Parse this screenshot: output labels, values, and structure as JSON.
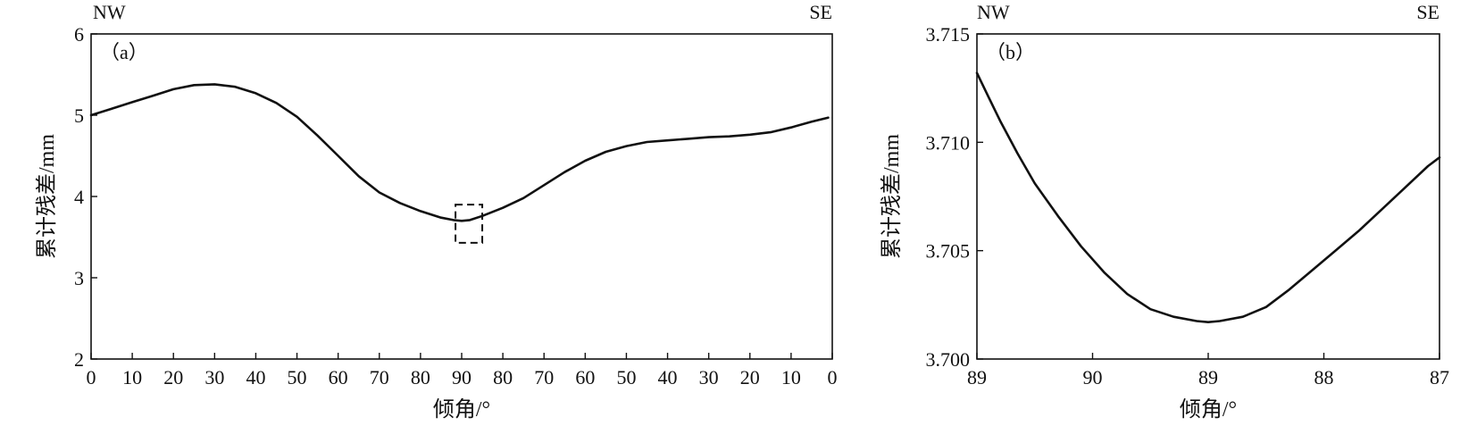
{
  "chart_data": [
    {
      "type": "line",
      "panel_label": "（a）",
      "direction_left": "NW",
      "direction_right": "SE",
      "xlabel": "倾角/°",
      "ylabel": "累计残差/mm",
      "x_tick_labels": [
        "0",
        "10",
        "20",
        "30",
        "40",
        "50",
        "60",
        "70",
        "80",
        "90",
        "80",
        "70",
        "60",
        "50",
        "40",
        "30",
        "20",
        "10",
        "0"
      ],
      "xlim": [
        0,
        180
      ],
      "ylim": [
        2,
        6
      ],
      "y_ticks": [
        2,
        3,
        4,
        5,
        6
      ],
      "y_tick_labels": [
        "2",
        "3",
        "4",
        "5",
        "6"
      ],
      "grid": false,
      "series": [
        {
          "x": [
            0,
            5,
            10,
            15,
            20,
            25,
            30,
            35,
            40,
            45,
            50,
            55,
            60,
            65,
            70,
            75,
            80,
            85,
            88,
            90,
            92,
            95,
            100,
            105,
            110,
            115,
            120,
            125,
            130,
            135,
            140,
            145,
            150,
            155,
            160,
            165,
            170,
            175,
            179
          ],
          "y": [
            5.0,
            5.08,
            5.16,
            5.24,
            5.32,
            5.37,
            5.38,
            5.35,
            5.27,
            5.15,
            4.98,
            4.75,
            4.5,
            4.25,
            4.05,
            3.92,
            3.82,
            3.74,
            3.71,
            3.7,
            3.71,
            3.76,
            3.86,
            3.98,
            4.14,
            4.3,
            4.44,
            4.55,
            4.62,
            4.67,
            4.69,
            4.71,
            4.73,
            4.74,
            4.76,
            4.79,
            4.85,
            4.92,
            4.97
          ]
        }
      ],
      "zoom_box": {
        "x": [
          88.5,
          95
        ],
        "y": [
          3.43,
          3.9
        ]
      }
    },
    {
      "type": "line",
      "panel_label": "（b）",
      "direction_left": "NW",
      "direction_right": "SE",
      "xlabel": "倾角/°",
      "ylabel": "累计残差/mm",
      "x_tick_labels": [
        "89",
        "90",
        "89",
        "88",
        "87"
      ],
      "xlim": [
        89,
        93
      ],
      "ylim": [
        3.7,
        3.715
      ],
      "y_ticks": [
        3.7,
        3.705,
        3.71,
        3.715
      ],
      "y_tick_labels": [
        "3.700",
        "3.705",
        "3.710",
        "3.715"
      ],
      "grid": false,
      "series": [
        {
          "x": [
            89.0,
            89.1,
            89.2,
            89.35,
            89.5,
            89.7,
            89.9,
            90.1,
            90.3,
            90.5,
            90.7,
            90.9,
            91.0,
            91.1,
            91.3,
            91.5,
            91.7,
            91.9,
            92.1,
            92.3,
            92.5,
            92.7,
            92.9,
            93.0
          ],
          "y": [
            3.7132,
            3.7121,
            3.711,
            3.7095,
            3.7081,
            3.7066,
            3.7052,
            3.704,
            3.703,
            3.7023,
            3.70195,
            3.70175,
            3.7017,
            3.70175,
            3.70195,
            3.7024,
            3.7032,
            3.7041,
            3.705,
            3.7059,
            3.7069,
            3.7079,
            3.7089,
            3.7093
          ]
        }
      ]
    }
  ]
}
